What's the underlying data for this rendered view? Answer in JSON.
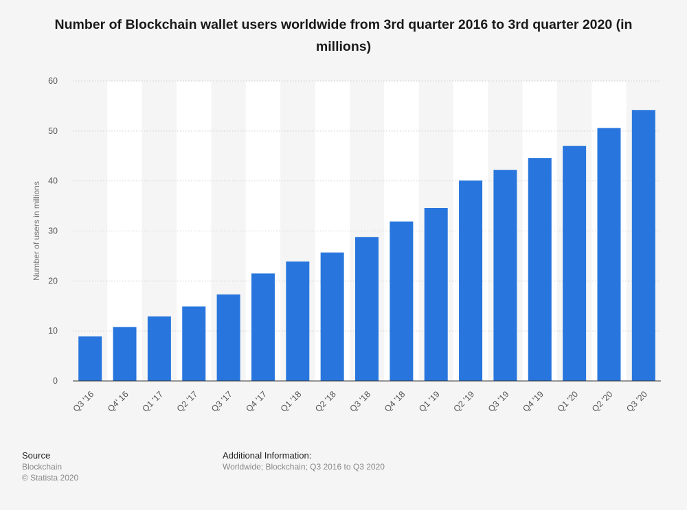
{
  "title": "Number of Blockchain wallet users worldwide from 3rd quarter 2016 to 3rd quarter 2020 (in millions)",
  "footer": {
    "source_heading": "Source",
    "source_name": "Blockchain",
    "copyright": "© Statista 2020",
    "info_heading": "Additional Information:",
    "info_text": "Worldwide; Blockchain; Q3 2016 to Q3 2020"
  },
  "colors": {
    "bar": "#2876dd",
    "background": "#f5f5f5",
    "band": "#ffffff",
    "grid": "#cccccc",
    "axis": "#333333"
  },
  "chart_data": {
    "type": "bar",
    "title": "Number of Blockchain wallet users worldwide from 3rd quarter 2016 to 3rd quarter 2020 (in millions)",
    "xlabel": "",
    "ylabel": "Number of users in millions",
    "categories": [
      "Q3 '16",
      "Q4' 16",
      "Q1 '17",
      "Q2 '17",
      "Q3 '17",
      "Q4 '17",
      "Q1 '18",
      "Q2 '18",
      "Q3 '18",
      "Q4 '18",
      "Q1 '19",
      "Q2 '19",
      "Q3 '19",
      "Q4 '19",
      "Q1 '20",
      "Q2 '20",
      "Q3 '20"
    ],
    "values": [
      8.9,
      10.8,
      12.9,
      14.9,
      17.3,
      21.5,
      23.9,
      25.7,
      28.8,
      31.9,
      34.6,
      40.1,
      42.2,
      44.6,
      47.0,
      50.6,
      54.2
    ],
    "ylim": [
      0,
      60
    ],
    "yticks": [
      0,
      10,
      20,
      30,
      40,
      50,
      60
    ],
    "grid": true,
    "legend": "none"
  }
}
